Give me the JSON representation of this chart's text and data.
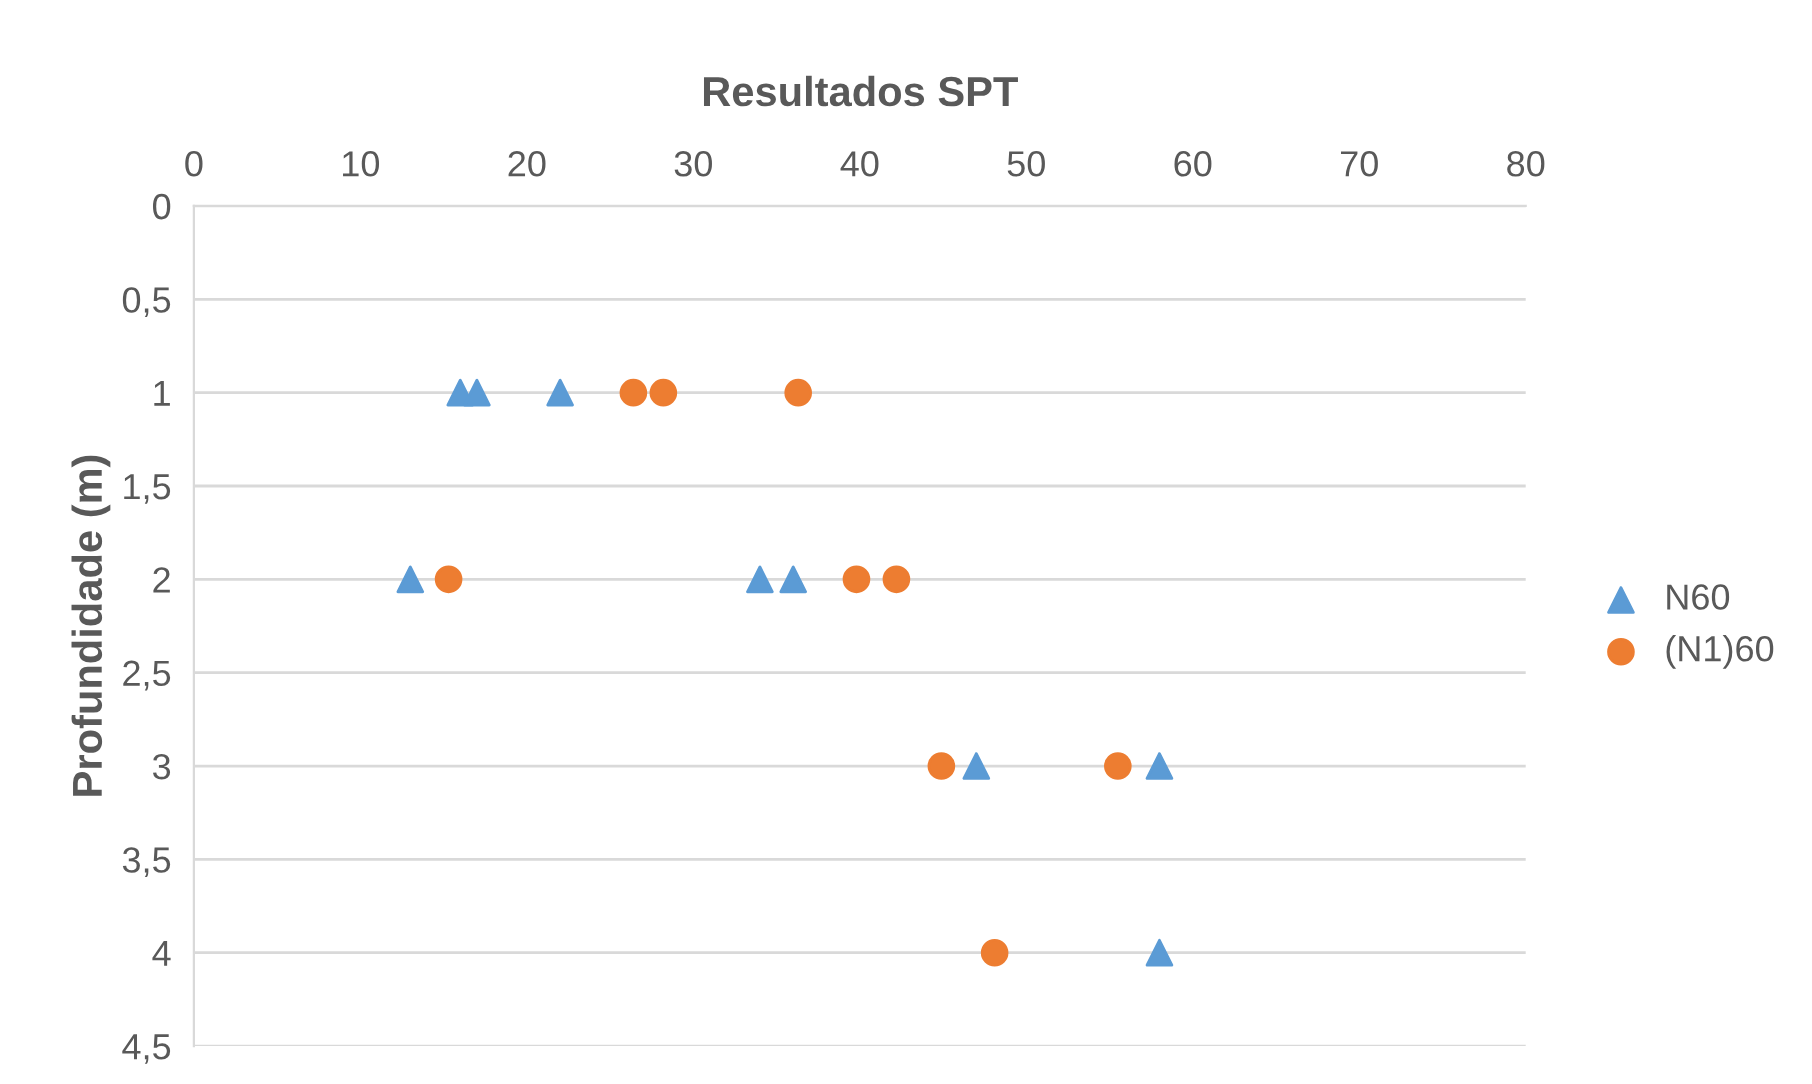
{
  "chart_data": {
    "type": "scatter",
    "title": "Resultados SPT",
    "ylabel": "Profundidade (m)",
    "xlim": [
      0,
      80
    ],
    "xticks": [
      0,
      10,
      20,
      30,
      40,
      50,
      60,
      70,
      80
    ],
    "ylim": [
      4.5,
      0
    ],
    "yticks": [
      0,
      {
        "value": 0.5,
        "label": "0,5"
      },
      1,
      {
        "value": 1.5,
        "label": "1,5"
      },
      2,
      {
        "value": 2.5,
        "label": "2,5"
      },
      3,
      {
        "value": 3.5,
        "label": "3,5"
      },
      4,
      {
        "value": 4.5,
        "label": "4,5"
      }
    ],
    "grid": "y",
    "legend": "right",
    "series": [
      {
        "name": "N60",
        "color": "#5b9bd5",
        "marker": "triangle",
        "x": [
          16,
          17,
          22,
          13,
          34,
          36,
          47,
          58,
          58
        ],
        "values": [
          1,
          1,
          1,
          2,
          2,
          2,
          3,
          3,
          4
        ]
      },
      {
        "name": "(N1)60",
        "color": "#ed7d31",
        "marker": "circle",
        "x": [
          26.4,
          28.2,
          36.3,
          15.3,
          39.8,
          42.2,
          44.9,
          55.5,
          48.1
        ],
        "values": [
          1,
          1,
          1,
          2,
          2,
          2,
          3,
          3,
          4
        ]
      }
    ]
  }
}
